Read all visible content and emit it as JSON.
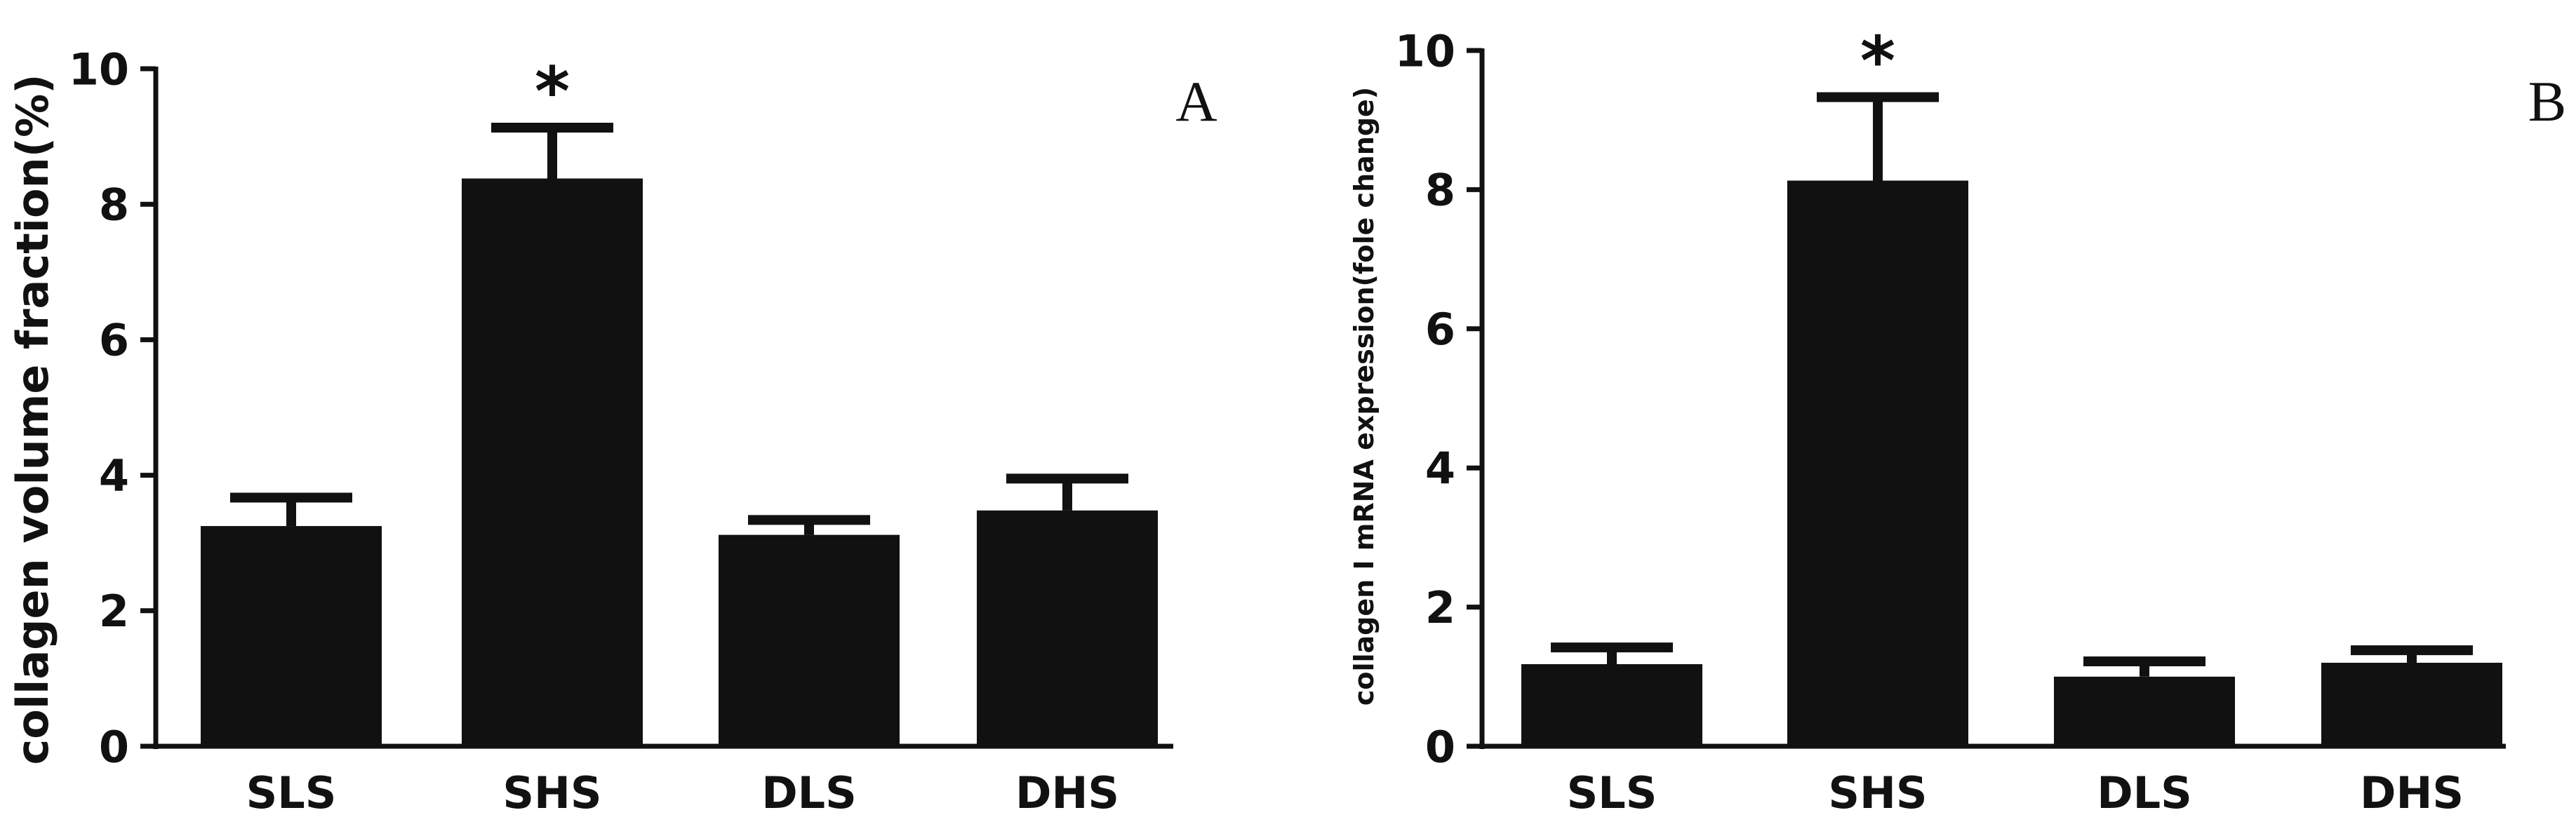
{
  "chart_data": [
    {
      "type": "bar",
      "panel_label": "A",
      "ylabel": "collagen volume fraction(%)",
      "xlabel": "",
      "categories": [
        "SLS",
        "SHS",
        "DLS",
        "DHS"
      ],
      "values": [
        3.25,
        8.38,
        3.12,
        3.48
      ],
      "errors": [
        0.42,
        0.75,
        0.22,
        0.47
      ],
      "significance": [
        "",
        "*",
        "",
        ""
      ],
      "ylim": [
        0,
        10
      ],
      "yticks": [
        0,
        2,
        4,
        6,
        8,
        10
      ],
      "grid": false,
      "bar_color": "#111111"
    },
    {
      "type": "bar",
      "panel_label": "B",
      "ylabel": "collagen Ⅰ mRNA expression(fole change)",
      "xlabel": "",
      "categories": [
        "SLS",
        "SHS",
        "DLS",
        "DHS"
      ],
      "values": [
        1.18,
        8.13,
        1.0,
        1.2
      ],
      "errors": [
        0.24,
        1.2,
        0.22,
        0.18
      ],
      "significance": [
        "",
        "*",
        "",
        ""
      ],
      "ylim": [
        0,
        10
      ],
      "yticks": [
        0,
        2,
        4,
        6,
        8,
        10
      ],
      "grid": false,
      "bar_color": "#111111"
    }
  ]
}
